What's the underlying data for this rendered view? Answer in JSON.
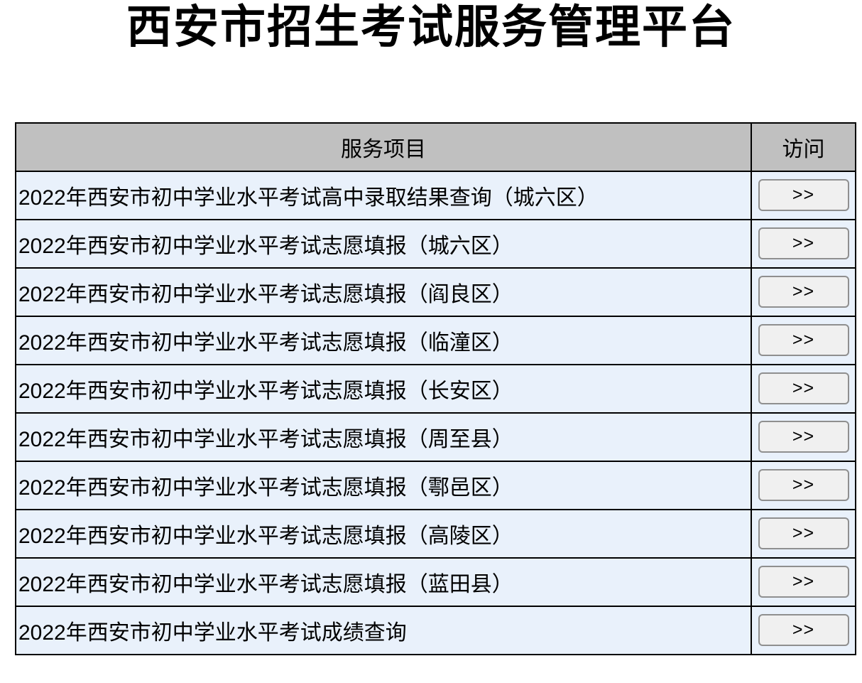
{
  "page": {
    "title": "西安市招生考试服务管理平台"
  },
  "table": {
    "headers": {
      "service": "服务项目",
      "access": "访问"
    },
    "button_label": ">>",
    "rows": [
      "2022年西安市初中学业水平考试高中录取结果查询（城六区）",
      "2022年西安市初中学业水平考试志愿填报（城六区）",
      "2022年西安市初中学业水平考试志愿填报（阎良区）",
      "2022年西安市初中学业水平考试志愿填报（临潼区）",
      "2022年西安市初中学业水平考试志愿填报（长安区）",
      "2022年西安市初中学业水平考试志愿填报（周至县）",
      "2022年西安市初中学业水平考试志愿填报（鄠邑区）",
      "2022年西安市初中学业水平考试志愿填报（高陵区）",
      "2022年西安市初中学业水平考试志愿填报（蓝田县）",
      "2022年西安市初中学业水平考试成绩查询"
    ]
  },
  "colors": {
    "header_bg": "#c0c0c0",
    "row_bg": "#e9f1fb",
    "border": "#000000",
    "button_bg": "#f0f0f0",
    "button_border": "#8f8f8f",
    "text": "#000000"
  }
}
